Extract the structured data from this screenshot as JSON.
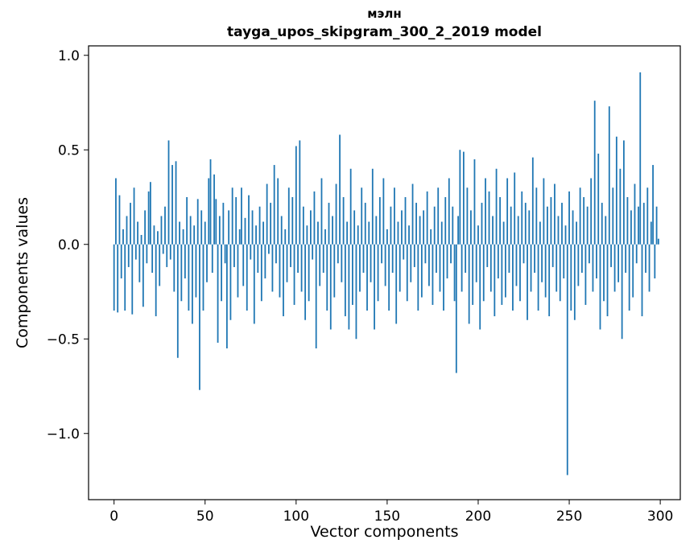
{
  "chart_data": {
    "type": "bar",
    "title": "мэлн",
    "subtitle": "tayga_upos_skipgram_300_2_2019 model",
    "xlabel": "Vector components",
    "ylabel": "Components values",
    "xlim": [
      -14,
      311
    ],
    "ylim": [
      -1.35,
      1.05
    ],
    "xticks": [
      0,
      50,
      100,
      150,
      200,
      250,
      300
    ],
    "yticks": [
      1.0,
      0.5,
      0.0,
      -0.5,
      -1.0
    ],
    "grid": false,
    "legend": "none",
    "bar_color": "#1f77b4",
    "axis_color": "#000000",
    "x_start": 0,
    "values": [
      -0.35,
      0.35,
      -0.36,
      0.26,
      -0.18,
      0.08,
      -0.35,
      0.15,
      -0.12,
      0.22,
      -0.37,
      0.3,
      -0.08,
      0.12,
      -0.2,
      0.05,
      -0.33,
      0.18,
      -0.1,
      0.28,
      0.33,
      -0.15,
      0.1,
      -0.38,
      0.07,
      -0.22,
      0.15,
      -0.05,
      0.2,
      -0.12,
      0.55,
      -0.08,
      0.42,
      -0.25,
      0.44,
      -0.6,
      0.12,
      -0.3,
      0.08,
      -0.18,
      0.25,
      -0.35,
      0.15,
      -0.42,
      0.1,
      -0.28,
      0.24,
      -0.77,
      0.18,
      -0.35,
      0.12,
      -0.2,
      0.35,
      0.45,
      -0.15,
      0.37,
      0.24,
      -0.52,
      0.15,
      -0.3,
      0.22,
      -0.1,
      -0.55,
      0.18,
      -0.4,
      0.3,
      -0.12,
      0.25,
      -0.28,
      0.08,
      0.3,
      -0.22,
      0.14,
      -0.35,
      0.26,
      -0.08,
      0.18,
      -0.42,
      0.1,
      -0.15,
      0.2,
      -0.3,
      0.12,
      -0.18,
      0.32,
      -0.05,
      0.22,
      -0.25,
      0.42,
      -0.1,
      0.35,
      -0.28,
      0.15,
      -0.38,
      0.08,
      -0.2,
      0.3,
      -0.12,
      0.25,
      -0.32,
      0.52,
      -0.15,
      0.55,
      -0.25,
      0.2,
      -0.4,
      0.1,
      -0.3,
      0.18,
      -0.08,
      0.28,
      -0.55,
      0.12,
      -0.22,
      0.35,
      -0.15,
      0.08,
      -0.35,
      0.22,
      -0.45,
      0.15,
      -0.28,
      0.32,
      -0.1,
      0.58,
      -0.2,
      0.25,
      -0.38,
      0.12,
      -0.45,
      0.4,
      -0.32,
      0.18,
      -0.5,
      0.1,
      -0.25,
      0.3,
      -0.15,
      0.22,
      -0.35,
      0.12,
      -0.2,
      0.4,
      -0.45,
      0.15,
      -0.3,
      0.25,
      -0.1,
      0.35,
      -0.22,
      0.08,
      -0.35,
      0.2,
      -0.15,
      0.3,
      -0.42,
      0.12,
      -0.25,
      0.18,
      -0.08,
      0.25,
      -0.3,
      0.1,
      -0.2,
      0.32,
      -0.12,
      0.22,
      -0.35,
      0.15,
      -0.28,
      0.18,
      -0.1,
      0.28,
      -0.22,
      0.08,
      -0.32,
      0.2,
      -0.15,
      0.3,
      -0.25,
      0.12,
      -0.35,
      0.25,
      -0.18,
      0.35,
      -0.1,
      0.2,
      -0.3,
      -0.68,
      0.15,
      0.5,
      -0.25,
      0.49,
      -0.15,
      0.3,
      -0.42,
      0.18,
      -0.32,
      0.45,
      -0.2,
      0.1,
      -0.45,
      0.22,
      -0.3,
      0.35,
      -0.12,
      0.28,
      -0.25,
      0.15,
      -0.38,
      0.4,
      -0.18,
      0.25,
      -0.32,
      0.12,
      -0.28,
      0.35,
      -0.15,
      0.2,
      -0.35,
      0.38,
      -0.22,
      0.15,
      -0.3,
      0.28,
      -0.1,
      0.22,
      -0.4,
      0.18,
      -0.25,
      0.46,
      -0.15,
      0.3,
      -0.35,
      0.12,
      -0.2,
      0.35,
      -0.28,
      0.2,
      -0.38,
      0.25,
      -0.12,
      0.32,
      -0.25,
      0.15,
      -0.3,
      0.22,
      -0.18,
      0.1,
      -1.22,
      0.28,
      -0.35,
      0.18,
      -0.4,
      0.12,
      -0.22,
      0.3,
      -0.15,
      0.25,
      -0.32,
      0.2,
      -0.1,
      0.35,
      -0.25,
      0.76,
      -0.18,
      0.48,
      -0.45,
      0.22,
      -0.3,
      0.15,
      -0.38,
      0.73,
      -0.12,
      0.3,
      -0.25,
      0.57,
      -0.2,
      0.4,
      -0.5,
      0.55,
      -0.15,
      0.25,
      -0.35,
      0.18,
      -0.28,
      0.32,
      -0.1,
      0.2,
      0.91,
      -0.38,
      0.22,
      -0.15,
      0.3,
      -0.25,
      0.12,
      0.42,
      -0.18,
      0.2,
      0.03
    ]
  }
}
